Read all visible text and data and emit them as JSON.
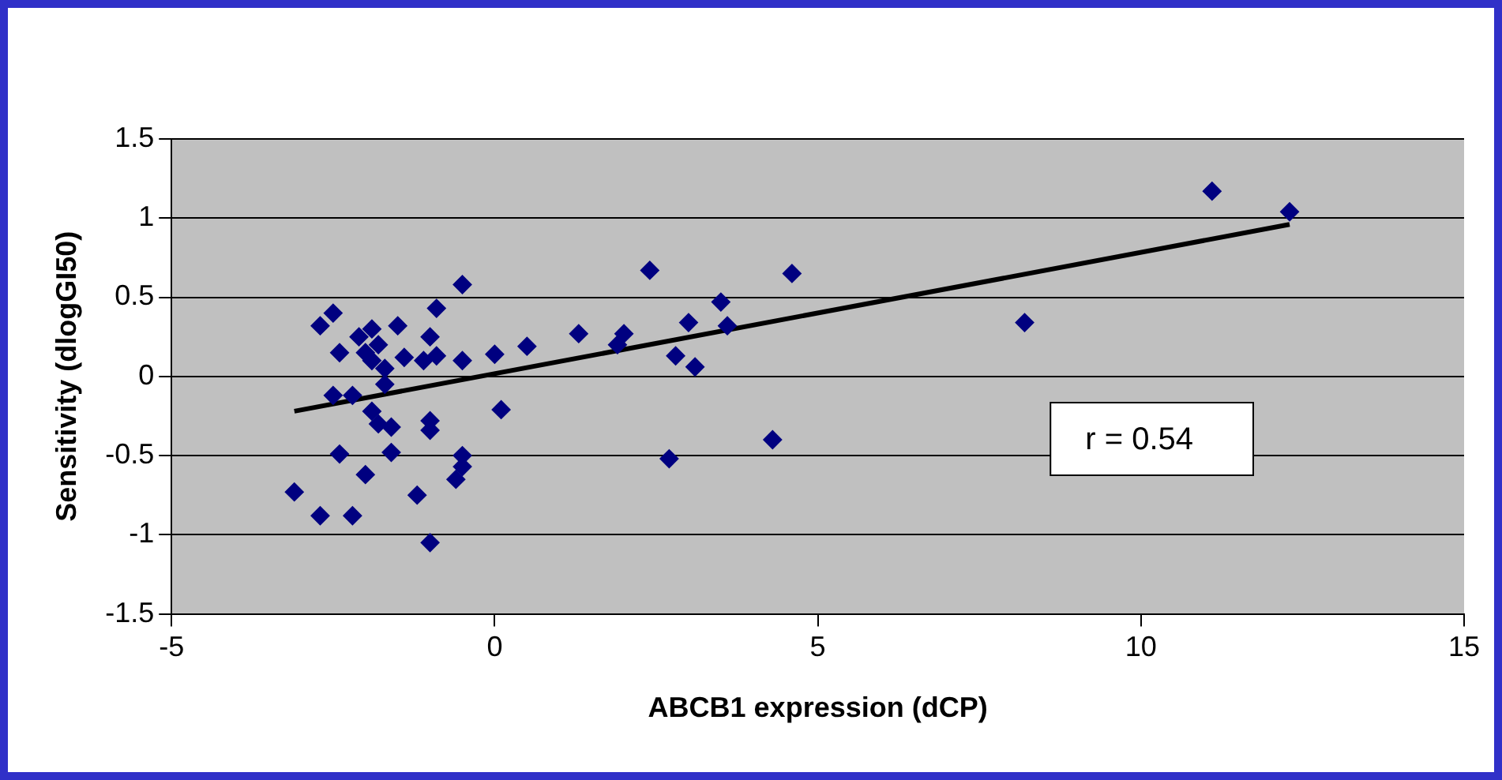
{
  "chart_data": {
    "type": "scatter",
    "xlabel": "ABCB1 expression (dCP)",
    "ylabel": "Sensitivity (dlogGI50)",
    "xlim": [
      -5,
      15
    ],
    "xticks": [
      -5,
      0,
      5,
      10,
      15
    ],
    "ylim": [
      -1.5,
      1.5
    ],
    "yticks": [
      -1.5,
      -1,
      -0.5,
      0,
      0.5,
      1,
      1.5
    ],
    "grid": "y",
    "legend": false,
    "marker": "diamond",
    "annotations": [
      "r = 0.54"
    ],
    "series": [
      {
        "color": "#000080",
        "x": [
          -3.1,
          -2.7,
          -2.7,
          -2.5,
          -2.5,
          -2.4,
          -2.4,
          -2.2,
          -2.2,
          -2.1,
          -2.0,
          -2.0,
          -1.9,
          -1.9,
          -1.9,
          -1.8,
          -1.8,
          -1.7,
          -1.7,
          -1.6,
          -1.6,
          -1.5,
          -1.4,
          -1.2,
          -1.1,
          -1.0,
          -1.0,
          -1.0,
          -1.0,
          -0.9,
          -0.9,
          -0.6,
          -0.5,
          -0.5,
          -0.5,
          -0.5,
          0.0,
          0.1,
          0.5,
          1.3,
          1.9,
          2.0,
          2.4,
          2.7,
          2.8,
          3.0,
          3.1,
          3.5,
          3.6,
          4.3,
          4.6,
          8.2,
          11.1,
          12.3
        ],
        "values": [
          -0.73,
          -0.88,
          0.32,
          0.4,
          -0.12,
          0.15,
          -0.49,
          -0.12,
          -0.88,
          0.25,
          -0.62,
          0.15,
          0.1,
          -0.22,
          0.3,
          0.2,
          -0.3,
          0.05,
          -0.05,
          -0.32,
          -0.48,
          0.32,
          0.12,
          -0.75,
          0.1,
          -0.34,
          -0.28,
          0.25,
          -1.05,
          0.43,
          0.13,
          -0.65,
          -0.5,
          -0.57,
          0.58,
          0.1,
          0.14,
          -0.21,
          0.19,
          0.27,
          0.2,
          0.27,
          0.67,
          -0.52,
          0.13,
          0.34,
          0.06,
          0.47,
          0.32,
          -0.4,
          0.65,
          0.34,
          1.17,
          1.04
        ]
      },
      {
        "type": "line",
        "color": "#000000",
        "marker": "none",
        "x": [
          -3.1,
          12.3
        ],
        "values": [
          -0.22,
          0.96
        ]
      }
    ]
  }
}
